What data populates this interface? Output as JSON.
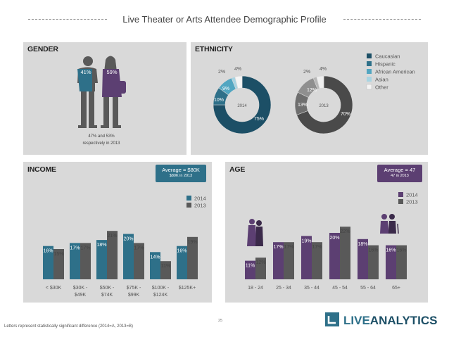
{
  "title": "Live Theater or Arts Attendee Demographic Profile",
  "footnote": "Letters represent statistically significant difference (2014=A, 2013=B)",
  "page_number": "25",
  "logo": {
    "brand_light": "LIVE",
    "brand_bold": "ANALYTICS"
  },
  "colors": {
    "panel": "#d9d9d9",
    "teal": "#2e7089",
    "dark_teal": "#1c4f66",
    "gray_dark": "#595959",
    "purple": "#5c3f72",
    "white": "#ffffff"
  },
  "gender": {
    "panel_title": "GENDER",
    "male_pct": "41%",
    "female_pct": "59%",
    "note_line1": "47% and 53%",
    "note_line2": "respectively in 2013"
  },
  "ethnicity": {
    "panel_title": "ETHNICITY",
    "legend": [
      "Caucasian",
      "Hispanic",
      "African American",
      "Asian",
      "Other"
    ],
    "legend_colors": [
      "#1c4f66",
      "#2e7089",
      "#52a6c1",
      "#a8d4e2",
      "#f4f4f4"
    ]
  },
  "income": {
    "panel_title": "INCOME",
    "avg_line1": "Average = $80K",
    "avg_line2": "$80K in 2013",
    "legend": [
      "2014",
      "2013"
    ]
  },
  "age": {
    "panel_title": "AGE",
    "avg_line1": "Average = 47",
    "avg_line2": "47 in 2013",
    "legend": [
      "2014",
      "2013"
    ]
  },
  "chart_data": [
    {
      "type": "pie",
      "name": "ethnicity-2014",
      "center_label": "2014",
      "categories": [
        "Caucasian",
        "Hispanic",
        "African American",
        "Asian",
        "Other"
      ],
      "values": [
        75,
        10,
        9,
        2,
        4
      ],
      "labels": [
        "75%",
        "10%",
        "9%",
        "2%",
        "4%"
      ],
      "colors": [
        "#1c4f66",
        "#2e7089",
        "#52a6c1",
        "#a8d4e2",
        "#f4f4f4"
      ]
    },
    {
      "type": "pie",
      "name": "ethnicity-2013",
      "center_label": "2013",
      "categories": [
        "Caucasian",
        "Hispanic",
        "African American",
        "Asian",
        "Other"
      ],
      "values": [
        70,
        13,
        12,
        2,
        4
      ],
      "labels": [
        "70%",
        "13%",
        "12%",
        "2%",
        "4%"
      ],
      "colors": [
        "#4a4a4a",
        "#6e6e6e",
        "#8f8f8f",
        "#b7b7b7",
        "#efefef"
      ]
    },
    {
      "type": "bar",
      "name": "income",
      "categories": [
        "< $30K",
        "$30K - $49K",
        "$50K - $74K",
        "$75K - $99K",
        "$100K - $124K",
        "$125K+"
      ],
      "category_lines": [
        [
          "< $30K"
        ],
        [
          "$30K -",
          "$49K"
        ],
        [
          "$50K -",
          "$74K"
        ],
        [
          "$75K -",
          "$99K"
        ],
        [
          "$100K -",
          "$124K"
        ],
        [
          "$125K+"
        ]
      ],
      "series": [
        {
          "name": "2014",
          "values": [
            16,
            17,
            18,
            20,
            14,
            16
          ],
          "labels": [
            "16%",
            "17%",
            "18%",
            "20%",
            "14%",
            "16%"
          ],
          "color": "#2e7089"
        },
        {
          "name": "2013",
          "values": [
            15,
            17,
            21,
            17,
            11,
            19
          ],
          "labels": [
            "15%",
            "17%",
            "21%",
            "17%",
            "11%",
            "19%"
          ],
          "color": "#595959"
        }
      ]
    },
    {
      "type": "bar",
      "name": "age",
      "categories": [
        "18 - 24",
        "25 - 34",
        "35 - 44",
        "45 - 54",
        "55 - 64",
        "65+"
      ],
      "category_lines": [
        [
          "18 - 24"
        ],
        [
          "25 - 34"
        ],
        [
          "35 - 44"
        ],
        [
          "45 - 54"
        ],
        [
          "55 - 64"
        ],
        [
          "65+"
        ]
      ],
      "series": [
        {
          "name": "2014",
          "values": [
            11,
            17,
            19,
            20,
            18,
            16
          ],
          "labels": [
            "11%",
            "17%",
            "19%",
            "20%",
            "18%",
            "16%"
          ],
          "color": "#5c3f72"
        },
        {
          "name": "2013",
          "values": [
            12,
            17,
            17,
            22,
            16,
            16
          ],
          "labels": [
            "12%",
            "17%",
            "17%",
            "22%",
            "16%",
            "16%"
          ],
          "color": "#595959"
        }
      ]
    }
  ]
}
